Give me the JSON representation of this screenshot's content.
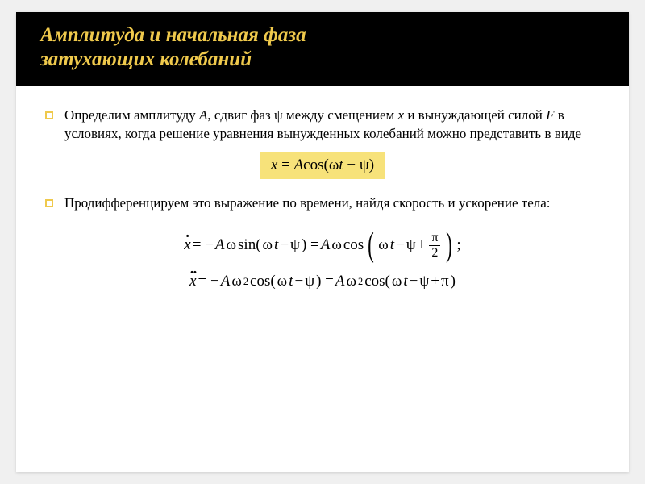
{
  "colors": {
    "header_bg": "#000000",
    "title_color": "#efc94c",
    "bullet_border": "#efc94c",
    "highlight_bg": "#f7e27a",
    "page_bg": "#ffffff",
    "text": "#000000"
  },
  "typography": {
    "title_fontsize": 25,
    "title_style": "bold italic",
    "body_fontsize": 17,
    "math_fontsize": 19,
    "font_family_title": "Georgia, serif",
    "font_family_body": "Georgia, Times New Roman, serif",
    "font_family_math": "Times New Roman, serif"
  },
  "title_line1": "Амплитуда и начальная фаза",
  "title_line2": "затухающих колебаний",
  "bullets": [
    {
      "pre": "Определим амплитуду ",
      "var1": "A",
      "mid1": ", сдвиг фаз ψ между смещением ",
      "var2": "x",
      "mid2": " и вынуждающей силой ",
      "var3": "F",
      "post": " в условиях, когда решение уравнения вынужденных колебаний можно представить в виде"
    },
    {
      "text": "Продифференцируем это выражение по времени, найдя скорость и ускорение тела:"
    }
  ],
  "equation_highlight": {
    "x": "x",
    "eq": " = ",
    "A": "A",
    "cos": "cos(",
    "omega": "ω",
    "t": "t",
    "minus": " − ",
    "psi": "ψ",
    "close": ")"
  },
  "math": {
    "line1": {
      "lhs_var": "x",
      "eq": " = −",
      "A": "A",
      "omega": "ω",
      "sin": " sin(",
      "t": "t",
      "minus": " − ",
      "psi": "ψ",
      "close": ") = ",
      "cos": " cos",
      "omega2": "ω",
      "plus": " + ",
      "frac_num": "π",
      "frac_den": "2",
      "semicolon": ";"
    },
    "line2": {
      "lhs_var": "x",
      "eq": " = −",
      "A": "A",
      "omega": "ω",
      "exp": "2",
      "cos": " cos(",
      "t": "t",
      "minus": " − ",
      "psi": "ψ",
      "close1": ") = ",
      "plus": " + ",
      "pi": "π",
      "close2": ")"
    }
  }
}
